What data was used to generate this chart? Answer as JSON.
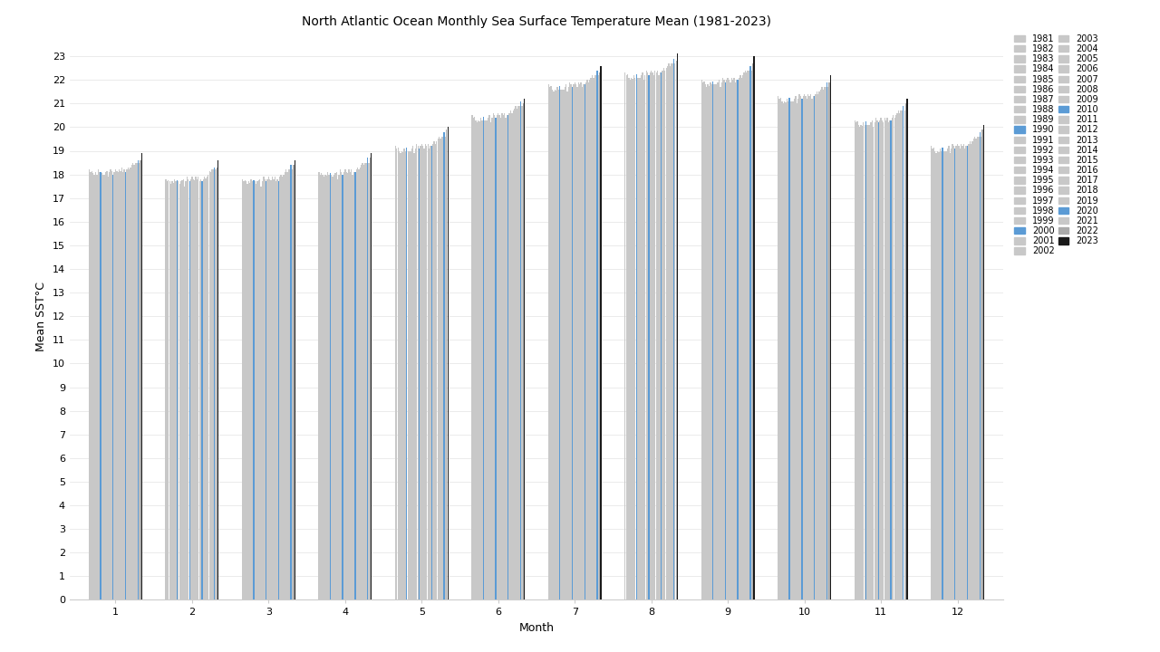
{
  "title": "North Atlantic Ocean Monthly Sea Surface Temperature Mean (1981-2023)",
  "xlabel": "Month",
  "ylabel": "Mean SST°C",
  "years": [
    1981,
    1982,
    1983,
    1984,
    1985,
    1986,
    1987,
    1988,
    1989,
    1990,
    1991,
    1992,
    1993,
    1994,
    1995,
    1996,
    1997,
    1998,
    1999,
    2000,
    2001,
    2002,
    2003,
    2004,
    2005,
    2006,
    2007,
    2008,
    2009,
    2010,
    2011,
    2012,
    2013,
    2014,
    2015,
    2016,
    2017,
    2018,
    2019,
    2020,
    2021,
    2022,
    2023
  ],
  "months": [
    1,
    2,
    3,
    4,
    5,
    6,
    7,
    8,
    9,
    10,
    11,
    12
  ],
  "sst_data": {
    "1": [
      18.2,
      18.1,
      18.15,
      18.05,
      18.0,
      18.1,
      18.0,
      18.2,
      18.1,
      18.1,
      18.05,
      18.0,
      18.0,
      18.1,
      18.15,
      17.9,
      18.1,
      18.2,
      18.15,
      18.0,
      18.1,
      18.2,
      18.15,
      18.1,
      18.2,
      18.15,
      18.3,
      18.1,
      18.2,
      18.1,
      18.2,
      18.3,
      18.2,
      18.3,
      18.4,
      18.5,
      18.4,
      18.5,
      18.5,
      18.6,
      18.5,
      18.6,
      18.9
    ],
    "2": [
      17.8,
      17.7,
      17.75,
      17.7,
      17.6,
      17.7,
      17.65,
      17.8,
      17.7,
      17.75,
      17.7,
      17.6,
      17.7,
      17.75,
      17.8,
      17.5,
      17.7,
      17.9,
      17.8,
      17.7,
      17.8,
      17.9,
      17.8,
      17.75,
      17.9,
      17.8,
      17.9,
      17.7,
      17.8,
      17.7,
      17.8,
      17.9,
      17.85,
      17.9,
      18.0,
      18.15,
      18.1,
      18.2,
      18.2,
      18.3,
      18.2,
      18.3,
      18.6
    ],
    "3": [
      17.8,
      17.7,
      17.75,
      17.7,
      17.6,
      17.7,
      17.65,
      17.8,
      17.7,
      17.75,
      17.7,
      17.6,
      17.7,
      17.75,
      17.8,
      17.5,
      17.7,
      17.9,
      17.8,
      17.7,
      17.8,
      17.9,
      17.8,
      17.75,
      17.9,
      17.8,
      17.9,
      17.7,
      17.8,
      17.7,
      17.9,
      18.0,
      17.9,
      18.0,
      18.1,
      18.2,
      18.1,
      18.2,
      18.2,
      18.4,
      18.2,
      18.4,
      18.6
    ],
    "4": [
      18.1,
      18.0,
      18.05,
      18.0,
      17.9,
      18.0,
      17.95,
      18.1,
      18.0,
      18.05,
      18.0,
      17.9,
      18.0,
      18.05,
      18.1,
      17.8,
      18.0,
      18.2,
      18.1,
      18.0,
      18.1,
      18.2,
      18.1,
      18.05,
      18.2,
      18.1,
      18.2,
      18.0,
      18.1,
      18.1,
      18.2,
      18.3,
      18.2,
      18.3,
      18.4,
      18.5,
      18.4,
      18.5,
      18.5,
      18.7,
      18.5,
      18.7,
      18.9
    ],
    "5": [
      19.2,
      19.1,
      19.15,
      19.0,
      18.9,
      19.0,
      18.95,
      19.1,
      19.0,
      19.15,
      19.0,
      19.0,
      19.0,
      19.1,
      19.2,
      18.9,
      19.1,
      19.3,
      19.2,
      19.1,
      19.2,
      19.3,
      19.2,
      19.1,
      19.3,
      19.2,
      19.3,
      19.1,
      19.2,
      19.2,
      19.3,
      19.4,
      19.3,
      19.4,
      19.5,
      19.6,
      19.5,
      19.6,
      19.6,
      19.8,
      19.6,
      19.9,
      20.0
    ],
    "6": [
      20.5,
      20.4,
      20.45,
      20.3,
      20.2,
      20.3,
      20.25,
      20.4,
      20.3,
      20.45,
      20.3,
      20.3,
      20.3,
      20.4,
      20.5,
      20.2,
      20.4,
      20.6,
      20.5,
      20.4,
      20.5,
      20.6,
      20.5,
      20.4,
      20.6,
      20.5,
      20.6,
      20.4,
      20.5,
      20.5,
      20.6,
      20.7,
      20.6,
      20.7,
      20.8,
      20.9,
      20.8,
      20.9,
      20.9,
      21.1,
      20.9,
      21.0,
      21.2
    ],
    "7": [
      21.8,
      21.7,
      21.75,
      21.6,
      21.5,
      21.6,
      21.55,
      21.7,
      21.6,
      21.75,
      21.6,
      21.6,
      21.6,
      21.7,
      21.8,
      21.5,
      21.7,
      21.9,
      21.8,
      21.7,
      21.8,
      21.9,
      21.8,
      21.7,
      21.9,
      21.8,
      21.9,
      21.7,
      21.8,
      21.8,
      21.9,
      22.0,
      21.9,
      22.0,
      22.1,
      22.2,
      22.1,
      22.2,
      22.2,
      22.4,
      22.2,
      22.3,
      22.6
    ],
    "8": [
      22.3,
      22.2,
      22.25,
      22.1,
      22.0,
      22.1,
      22.05,
      22.2,
      22.1,
      22.25,
      22.1,
      22.1,
      22.1,
      22.2,
      22.3,
      22.0,
      22.2,
      22.4,
      22.3,
      22.2,
      22.3,
      22.4,
      22.3,
      22.2,
      22.4,
      22.3,
      22.4,
      22.2,
      22.3,
      22.3,
      22.4,
      22.5,
      22.4,
      22.5,
      22.6,
      22.7,
      22.6,
      22.7,
      22.7,
      22.9,
      22.7,
      22.8,
      23.1
    ],
    "9": [
      22.0,
      21.9,
      21.95,
      21.8,
      21.7,
      21.8,
      21.75,
      21.9,
      21.8,
      21.95,
      21.8,
      21.8,
      21.8,
      21.9,
      22.0,
      21.7,
      21.9,
      22.1,
      22.0,
      21.9,
      22.0,
      22.1,
      22.0,
      21.9,
      22.1,
      22.0,
      22.1,
      21.9,
      22.0,
      22.0,
      22.1,
      22.2,
      22.1,
      22.2,
      22.3,
      22.4,
      22.3,
      22.4,
      22.4,
      22.6,
      22.4,
      22.7,
      23.0
    ],
    "10": [
      21.3,
      21.2,
      21.25,
      21.1,
      21.0,
      21.1,
      21.05,
      21.2,
      21.1,
      21.25,
      21.1,
      21.1,
      21.1,
      21.2,
      21.3,
      21.0,
      21.2,
      21.4,
      21.3,
      21.2,
      21.3,
      21.4,
      21.3,
      21.2,
      21.4,
      21.3,
      21.4,
      21.2,
      21.3,
      21.3,
      21.4,
      21.5,
      21.4,
      21.5,
      21.6,
      21.7,
      21.6,
      21.7,
      21.7,
      21.9,
      21.7,
      21.9,
      22.2
    ],
    "11": [
      20.3,
      20.2,
      20.25,
      20.1,
      20.0,
      20.1,
      20.05,
      20.2,
      20.1,
      20.25,
      20.1,
      20.1,
      20.1,
      20.2,
      20.3,
      20.0,
      20.2,
      20.4,
      20.3,
      20.2,
      20.3,
      20.4,
      20.3,
      20.2,
      20.4,
      20.3,
      20.4,
      20.2,
      20.3,
      20.3,
      20.4,
      20.5,
      20.4,
      20.5,
      20.6,
      20.7,
      20.6,
      20.7,
      20.7,
      20.9,
      20.7,
      21.0,
      21.2
    ],
    "12": [
      19.2,
      19.1,
      19.15,
      19.0,
      18.9,
      19.0,
      18.95,
      19.1,
      19.0,
      19.15,
      19.0,
      19.0,
      19.0,
      19.1,
      19.2,
      18.9,
      19.1,
      19.3,
      19.2,
      19.1,
      19.2,
      19.3,
      19.2,
      19.1,
      19.3,
      19.2,
      19.3,
      19.1,
      19.2,
      19.2,
      19.3,
      19.4,
      19.3,
      19.4,
      19.5,
      19.6,
      19.5,
      19.6,
      19.6,
      19.8,
      19.6,
      19.9,
      20.1
    ]
  },
  "highlight_years_blue": [
    1990,
    2000,
    2010,
    2020
  ],
  "highlight_year_black": 2023,
  "color_gray": "#C8C8C8",
  "color_blue": "#5B9BD5",
  "color_black": "#1A1A1A",
  "color_2022": "#AAAAAA",
  "ylim": [
    0,
    24
  ],
  "yticks": [
    0,
    1,
    2,
    3,
    4,
    5,
    6,
    7,
    8,
    9,
    10,
    11,
    12,
    13,
    14,
    15,
    16,
    17,
    18,
    19,
    20,
    21,
    22,
    23
  ],
  "title_fontsize": 10,
  "axis_label_fontsize": 9,
  "tick_fontsize": 8,
  "legend_fontsize": 7,
  "background_color": "#FFFFFF",
  "grid_color": "#E8E8E8"
}
